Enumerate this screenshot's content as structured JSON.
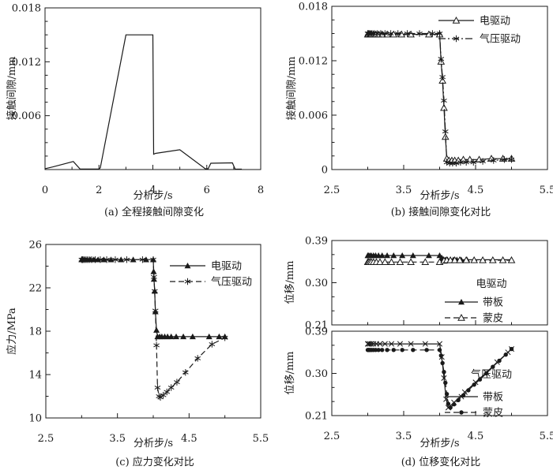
{
  "page": {
    "background": "#ffffff",
    "ink": "#1a1a1a"
  },
  "chart_data": [
    {
      "id": "a",
      "type": "line",
      "caption": "(a) 全程接触间隙变化",
      "xlabel": "分析步/s",
      "panels": [
        {
          "ylabel": "接触间隙/mm",
          "xlim": [
            0,
            8
          ],
          "ylim": [
            0,
            0.018
          ],
          "xticks": {
            "major": [
              0,
              2,
              4,
              6,
              8
            ],
            "labels": [
              "0",
              "2",
              "4",
              "6",
              "8"
            ],
            "minor": [
              1,
              3,
              5,
              7
            ]
          },
          "yticks": {
            "major": [
              0,
              0.006,
              0.012,
              0.018
            ],
            "labels": [
              "",
              "0.006",
              "0.012",
              "0.018"
            ],
            "minor": [
              0.0015,
              0.003,
              0.0045,
              0.0075,
              0.009,
              0.0105,
              0.0135,
              0.015,
              0.0165
            ]
          },
          "series": [
            {
              "name": "接触间隙",
              "marker": "none",
              "line": "solid",
              "x": [
                0,
                0.3,
                1.05,
                1.3,
                2.0,
                2.05,
                3.0,
                4.0,
                4.03,
                4.1,
                5.0,
                5.95,
                6.05,
                6.15,
                6.95,
                7.05,
                7.3
              ],
              "y": [
                0.0001,
                0.0003,
                0.0009,
                5e-05,
                5e-05,
                0.0002,
                0.015,
                0.015,
                0.0017,
                0.0018,
                0.0022,
                8e-05,
                0.0001,
                0.0007,
                0.00075,
                5e-05,
                4e-05
              ]
            }
          ],
          "legend": null
        }
      ]
    },
    {
      "id": "b",
      "type": "line",
      "caption": "(b) 接触间隙变化对比",
      "xlabel": "分析步/s",
      "panels": [
        {
          "ylabel": "接触间隙/mm",
          "xlim": [
            2.5,
            5.5
          ],
          "ylim": [
            0,
            0.018
          ],
          "xticks": {
            "major": [
              2.5,
              3.5,
              4.5,
              5.5
            ],
            "labels": [
              "2.5",
              "3.5",
              "4.5",
              "5.5"
            ],
            "minor": [
              3.0,
              4.0,
              5.0
            ]
          },
          "yticks": {
            "major": [
              0,
              0.006,
              0.012,
              0.018
            ],
            "labels": [
              "0",
              "0.006",
              "0.012",
              "0.018"
            ],
            "minor": [
              0.0015,
              0.003,
              0.0045,
              0.0075,
              0.009,
              0.0105,
              0.0135,
              0.015,
              0.0165
            ]
          },
          "series": [
            {
              "name": "电驱动",
              "marker": "tri-open",
              "line": "solid",
              "x": [
                3.0,
                3.01,
                3.03,
                3.05,
                3.08,
                3.11,
                3.15,
                3.2,
                3.27,
                3.36,
                3.47,
                3.6,
                3.85,
                4.0,
                4.02,
                4.04,
                4.06,
                4.08,
                4.1,
                4.13,
                4.17,
                4.21,
                4.26,
                4.33,
                4.42,
                4.55,
                4.72,
                4.88,
                5.0
              ],
              "y": [
                0.0149,
                0.0149,
                0.0149,
                0.0149,
                0.0149,
                0.0149,
                0.0149,
                0.0149,
                0.0149,
                0.0149,
                0.0149,
                0.0149,
                0.0149,
                0.0149,
                0.0119,
                0.0098,
                0.0068,
                0.0036,
                0.0012,
                0.001,
                0.001,
                0.001,
                0.001,
                0.0011,
                0.0011,
                0.0011,
                0.0012,
                0.0012,
                0.0012
              ]
            },
            {
              "name": "气压驱动",
              "marker": "asterisk",
              "line": "dashdot",
              "x": [
                3.0,
                3.008,
                3.02,
                3.04,
                3.06,
                3.09,
                3.13,
                3.18,
                3.24,
                3.32,
                3.42,
                3.55,
                3.72,
                3.9,
                4.0,
                4.02,
                4.04,
                4.06,
                4.08,
                4.1,
                4.14,
                4.18,
                4.23,
                4.29,
                4.37,
                4.47,
                4.6,
                4.75,
                4.9,
                5.0
              ],
              "y": [
                0.015,
                0.015,
                0.015,
                0.015,
                0.015,
                0.015,
                0.015,
                0.015,
                0.015,
                0.015,
                0.015,
                0.015,
                0.015,
                0.015,
                0.015,
                0.0122,
                0.0102,
                0.0076,
                0.0042,
                0.0008,
                0.0007,
                0.0007,
                0.0007,
                0.0008,
                0.0008,
                0.0008,
                0.0009,
                0.001,
                0.0011,
                0.0011
              ]
            }
          ],
          "legend": {
            "entries": [
              0,
              1
            ]
          }
        }
      ]
    },
    {
      "id": "c",
      "type": "line",
      "caption": "(c) 应力变化对比",
      "xlabel": "分析步/s",
      "panels": [
        {
          "ylabel": "应力/MPa",
          "xlim": [
            2.5,
            5.5
          ],
          "ylim": [
            10,
            26
          ],
          "xticks": {
            "major": [
              2.5,
              3.5,
              4.5,
              5.5
            ],
            "labels": [
              "2.5",
              "3.5",
              "4.5",
              "5.5"
            ],
            "minor": [
              3.0,
              4.0,
              5.0
            ]
          },
          "yticks": {
            "major": [
              10,
              14,
              18,
              22,
              26
            ],
            "labels": [
              "10",
              "14",
              "18",
              "22",
              "26"
            ],
            "minor": [
              12,
              16,
              20,
              24
            ]
          },
          "series": [
            {
              "name": "电驱动",
              "marker": "tri-filled",
              "line": "solid",
              "x": [
                3.0,
                3.01,
                3.03,
                3.05,
                3.08,
                3.12,
                3.17,
                3.23,
                3.31,
                3.41,
                3.55,
                3.72,
                3.9,
                4.0,
                4.005,
                4.01,
                4.02,
                4.03,
                4.045,
                4.06,
                4.09,
                4.12,
                4.16,
                4.2,
                4.25,
                4.32,
                4.42,
                4.55,
                4.78,
                4.92,
                5.0
              ],
              "y": [
                24.6,
                24.6,
                24.6,
                24.6,
                24.6,
                24.6,
                24.6,
                24.6,
                24.6,
                24.6,
                24.6,
                24.6,
                24.6,
                24.6,
                23.5,
                22.8,
                21.7,
                19.8,
                18.1,
                17.5,
                17.5,
                17.5,
                17.5,
                17.5,
                17.5,
                17.5,
                17.5,
                17.5,
                17.5,
                17.5,
                17.5
              ]
            },
            {
              "name": "气压驱动",
              "marker": "asterisk",
              "line": "dashed",
              "x": [
                3.0,
                3.012,
                3.028,
                3.05,
                3.075,
                3.105,
                3.14,
                3.19,
                3.26,
                3.35,
                3.47,
                3.63,
                3.85,
                4.0,
                4.01,
                4.02,
                4.03,
                4.045,
                4.06,
                4.08,
                4.1,
                4.14,
                4.19,
                4.25,
                4.33,
                4.45,
                4.62,
                4.82,
                5.0
              ],
              "y": [
                24.6,
                24.6,
                24.6,
                24.6,
                24.6,
                24.6,
                24.6,
                24.6,
                24.6,
                24.6,
                24.6,
                24.6,
                24.6,
                24.6,
                23.0,
                21.7,
                19.9,
                16.7,
                12.8,
                12.0,
                11.9,
                12.1,
                12.4,
                12.8,
                13.3,
                14.2,
                15.5,
                16.8,
                17.4
              ]
            }
          ],
          "legend": {
            "entries": [
              0,
              1
            ]
          }
        }
      ]
    },
    {
      "id": "d",
      "type": "line",
      "caption": "(d) 位移变化对比",
      "xlabel": "分析步/s",
      "panels": [
        {
          "ylabel": "位移/mm",
          "xlim": [
            2.5,
            5.5
          ],
          "ylim": [
            0.21,
            0.39
          ],
          "xticks": {
            "major": [
              2.5,
              3.5,
              4.5,
              5.5
            ],
            "labels": [],
            "minor": [
              3.0,
              4.0,
              5.0
            ]
          },
          "yticks": {
            "major": [
              0.21,
              0.3,
              0.39
            ],
            "labels": [
              "0.21",
              "0.30",
              "0.39"
            ],
            "minor": [
              0.24,
              0.27,
              0.33,
              0.36
            ]
          },
          "legend_title": "电驱动",
          "series": [
            {
              "name": "带板",
              "marker": "tri-filled",
              "line": "solid",
              "x": [
                3.0,
                3.01,
                3.03,
                3.05,
                3.08,
                3.11,
                3.15,
                3.2,
                3.27,
                3.36,
                3.48,
                3.63,
                3.85,
                4.0,
                4.03,
                4.05,
                4.08,
                4.11,
                4.15,
                4.19,
                4.24,
                4.3,
                4.38,
                4.48,
                4.6,
                4.74,
                4.88,
                5.0
              ],
              "y": [
                0.358,
                0.358,
                0.358,
                0.358,
                0.358,
                0.358,
                0.358,
                0.358,
                0.358,
                0.358,
                0.358,
                0.358,
                0.358,
                0.358,
                0.353,
                0.35,
                0.349,
                0.349,
                0.349,
                0.349,
                0.349,
                0.349,
                0.349,
                0.349,
                0.349,
                0.349,
                0.349,
                0.349
              ]
            },
            {
              "name": "蒙皮",
              "marker": "tri-open",
              "line": "dashed",
              "x": [
                3.0,
                3.012,
                3.03,
                3.05,
                3.08,
                3.12,
                3.17,
                3.24,
                3.33,
                3.45,
                3.6,
                3.8,
                4.0,
                4.06,
                4.1,
                4.15,
                4.21,
                4.28,
                4.37,
                4.48,
                4.6,
                4.74,
                4.88,
                5.0
              ],
              "y": [
                0.344,
                0.344,
                0.344,
                0.344,
                0.344,
                0.344,
                0.344,
                0.344,
                0.344,
                0.344,
                0.344,
                0.344,
                0.344,
                0.347,
                0.348,
                0.348,
                0.348,
                0.348,
                0.348,
                0.348,
                0.348,
                0.348,
                0.348,
                0.348
              ]
            }
          ],
          "legend": {
            "entries": [
              0,
              1
            ]
          }
        },
        {
          "ylabel": "位移/mm",
          "xlim": [
            2.5,
            5.5
          ],
          "ylim": [
            0.21,
            0.39
          ],
          "xticks": {
            "major": [
              2.5,
              3.5,
              4.5,
              5.5
            ],
            "labels": [
              "2.5",
              "3.5",
              "4.5",
              "5.5"
            ],
            "minor": [
              3.0,
              4.0,
              5.0
            ]
          },
          "yticks": {
            "major": [
              0.21,
              0.3,
              0.39
            ],
            "labels": [
              "0.21",
              "0.30",
              "0.39"
            ],
            "minor": [
              0.24,
              0.27,
              0.33,
              0.36
            ]
          },
          "legend_title": "气压驱动",
          "series": [
            {
              "name": "带板",
              "marker": "x",
              "line": "solid",
              "x": [
                3.0,
                3.01,
                3.03,
                3.05,
                3.08,
                3.12,
                3.17,
                3.24,
                3.33,
                3.45,
                3.6,
                3.8,
                4.0,
                4.03,
                4.06,
                4.09,
                4.12,
                4.2,
                4.35,
                4.5,
                4.65,
                4.8,
                4.95,
                5.0
              ],
              "y": [
                0.363,
                0.363,
                0.363,
                0.363,
                0.363,
                0.363,
                0.363,
                0.363,
                0.363,
                0.363,
                0.363,
                0.363,
                0.363,
                0.335,
                0.29,
                0.245,
                0.227,
                0.238,
                0.26,
                0.281,
                0.302,
                0.324,
                0.345,
                0.352
              ]
            },
            {
              "name": "蒙皮",
              "marker": "circle-filled",
              "line": "dashed",
              "x": [
                3.0,
                3.008,
                3.02,
                3.035,
                3.055,
                3.08,
                3.11,
                3.15,
                3.2,
                3.27,
                3.36,
                3.48,
                3.63,
                3.82,
                4.0,
                4.02,
                4.04,
                4.06,
                4.08,
                4.1,
                4.12,
                4.15,
                4.2,
                4.26,
                4.33,
                4.4,
                4.48,
                4.56,
                4.65,
                4.74,
                4.83,
                4.92,
                5.0
              ],
              "y": [
                0.35,
                0.35,
                0.35,
                0.35,
                0.35,
                0.35,
                0.35,
                0.35,
                0.35,
                0.35,
                0.35,
                0.35,
                0.35,
                0.35,
                0.35,
                0.338,
                0.322,
                0.303,
                0.28,
                0.256,
                0.235,
                0.227,
                0.234,
                0.243,
                0.253,
                0.264,
                0.276,
                0.287,
                0.3,
                0.314,
                0.327,
                0.34,
                0.352
              ]
            }
          ],
          "legend": {
            "entries": [
              0,
              1
            ]
          }
        }
      ]
    }
  ]
}
